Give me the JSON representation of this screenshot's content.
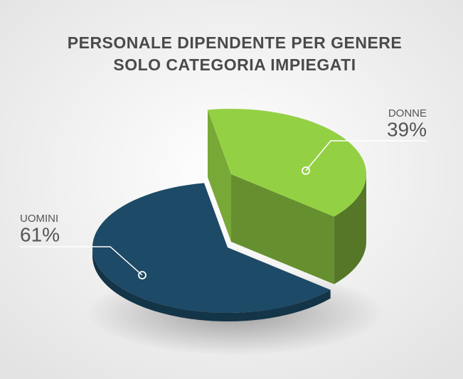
{
  "chart_data": {
    "type": "pie",
    "title": "PERSONALE DIPENDENTE PER GENERE",
    "subtitle": "SOLO CATEGORIA IMPIEGATI",
    "categories": [
      "UOMINI",
      "DONNE"
    ],
    "values": [
      61,
      39
    ],
    "value_labels": [
      "61%",
      "39%"
    ],
    "colors": [
      "#1d4a66",
      "#8dc641"
    ]
  }
}
